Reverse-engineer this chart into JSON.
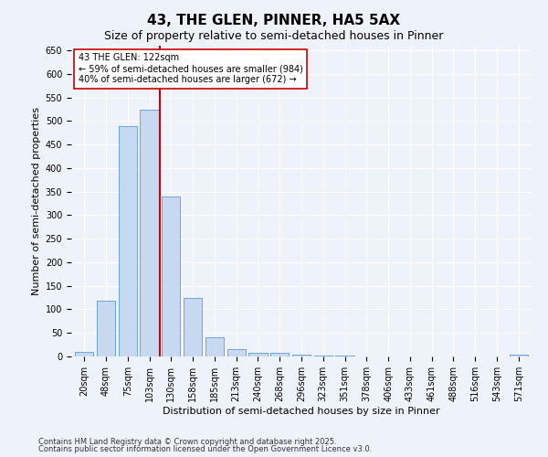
{
  "title": "43, THE GLEN, PINNER, HA5 5AX",
  "subtitle": "Size of property relative to semi-detached houses in Pinner",
  "xlabel": "Distribution of semi-detached houses by size in Pinner",
  "ylabel": "Number of semi-detached properties",
  "footnote1": "Contains HM Land Registry data © Crown copyright and database right 2025.",
  "footnote2": "Contains public sector information licensed under the Open Government Licence v3.0.",
  "bar_labels": [
    "20sqm",
    "48sqm",
    "75sqm",
    "103sqm",
    "130sqm",
    "158sqm",
    "185sqm",
    "213sqm",
    "240sqm",
    "268sqm",
    "296sqm",
    "323sqm",
    "351sqm",
    "378sqm",
    "406sqm",
    "433sqm",
    "461sqm",
    "488sqm",
    "516sqm",
    "543sqm",
    "571sqm"
  ],
  "bar_values": [
    10,
    118,
    490,
    525,
    340,
    125,
    40,
    15,
    8,
    7,
    3,
    1,
    1,
    0,
    0,
    0,
    0,
    0,
    0,
    0,
    3
  ],
  "bar_color": "#c6d9f0",
  "bar_edge_color": "#5b9bd5",
  "vline_x": 3.5,
  "vline_color": "#cc0000",
  "annotation_title": "43 THE GLEN: 122sqm",
  "annotation_line1": "← 59% of semi-detached houses are smaller (984)",
  "annotation_line2": "40% of semi-detached houses are larger (672) →",
  "annotation_box_color": "#ffffff",
  "annotation_box_edge": "#cc0000",
  "ylim": [
    0,
    660
  ],
  "yticks": [
    0,
    50,
    100,
    150,
    200,
    250,
    300,
    350,
    400,
    450,
    500,
    550,
    600,
    650
  ],
  "bg_color": "#eef2fa",
  "grid_color": "#ffffff",
  "title_fontsize": 11,
  "subtitle_fontsize": 9,
  "axis_label_fontsize": 8,
  "tick_fontsize": 7,
  "annotation_fontsize": 7,
  "footnote_fontsize": 6
}
